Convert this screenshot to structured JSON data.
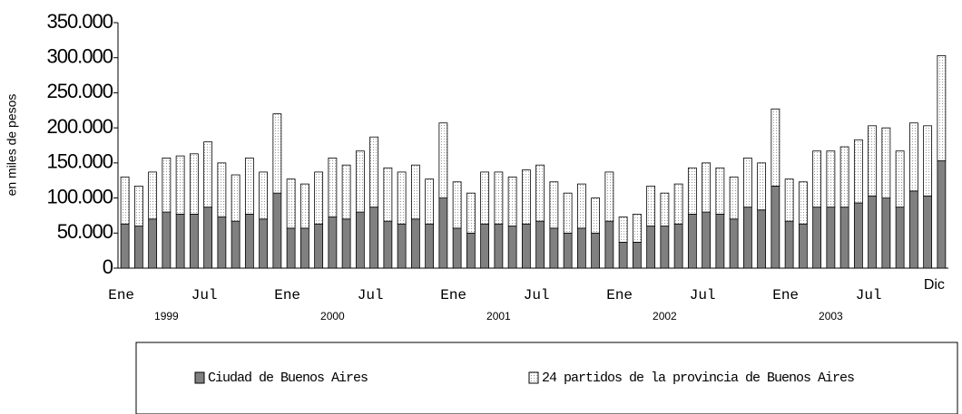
{
  "chart_data": {
    "type": "stacked_bar",
    "y_label": "en miles de pesos",
    "categories": [
      "Ene",
      null,
      null,
      null,
      null,
      null,
      "Jul",
      null,
      null,
      null,
      null,
      null,
      "Ene",
      null,
      null,
      null,
      null,
      null,
      "Jul",
      null,
      null,
      null,
      null,
      null,
      "Ene",
      null,
      null,
      null,
      null,
      null,
      "Jul",
      null,
      null,
      null,
      null,
      null,
      "Ene",
      null,
      null,
      null,
      null,
      null,
      "Jul",
      null,
      null,
      null,
      null,
      null,
      "Ene",
      null,
      null,
      null,
      null,
      null,
      "Jul",
      null,
      null,
      null,
      null,
      "Dic"
    ],
    "year_labels": [
      "1999",
      "2000",
      "2001",
      "2002",
      "2003"
    ],
    "series": [
      {
        "name": "Ciudad de Buenos Aires",
        "color": "#808080",
        "values": [
          63000,
          60000,
          70000,
          80000,
          77000,
          77000,
          87000,
          73000,
          67000,
          77000,
          70000,
          107000,
          57000,
          57000,
          63000,
          73000,
          70000,
          80000,
          87000,
          67000,
          63000,
          70000,
          63000,
          100000,
          57000,
          50000,
          63000,
          63000,
          60000,
          63000,
          67000,
          57000,
          50000,
          57000,
          50000,
          67000,
          37000,
          37000,
          60000,
          60000,
          63000,
          77000,
          80000,
          77000,
          70000,
          87000,
          83000,
          117000,
          67000,
          63000,
          87000,
          87000,
          87000,
          93000,
          103000,
          100000,
          87000,
          110000,
          103000,
          153000
        ]
      },
      {
        "name": "24 partidos de la provincia de Buenos Aires",
        "color": "#ffffff",
        "values": [
          67000,
          57000,
          67000,
          77000,
          83000,
          86000,
          93000,
          77000,
          66000,
          80000,
          67000,
          113000,
          70000,
          63000,
          74000,
          84000,
          77000,
          87000,
          100000,
          76000,
          74000,
          77000,
          64000,
          107000,
          66000,
          57000,
          74000,
          74000,
          70000,
          77000,
          80000,
          66000,
          57000,
          63000,
          50000,
          70000,
          36000,
          40000,
          57000,
          47000,
          57000,
          66000,
          70000,
          66000,
          60000,
          70000,
          67000,
          110000,
          60000,
          60000,
          80000,
          80000,
          86000,
          90000,
          100000,
          100000,
          80000,
          97000,
          100000,
          150000
        ]
      }
    ],
    "ylim": [
      0,
      350000
    ],
    "yticks": [
      {
        "value": 0,
        "label": "0"
      },
      {
        "value": 50000,
        "label": "50.000"
      },
      {
        "value": 100000,
        "label": "100.000"
      },
      {
        "value": 150000,
        "label": "150.000"
      },
      {
        "value": 200000,
        "label": "200.000"
      },
      {
        "value": 250000,
        "label": "250.000"
      },
      {
        "value": 300000,
        "label": "300.000"
      },
      {
        "value": 350000,
        "label": "350.000"
      }
    ]
  }
}
